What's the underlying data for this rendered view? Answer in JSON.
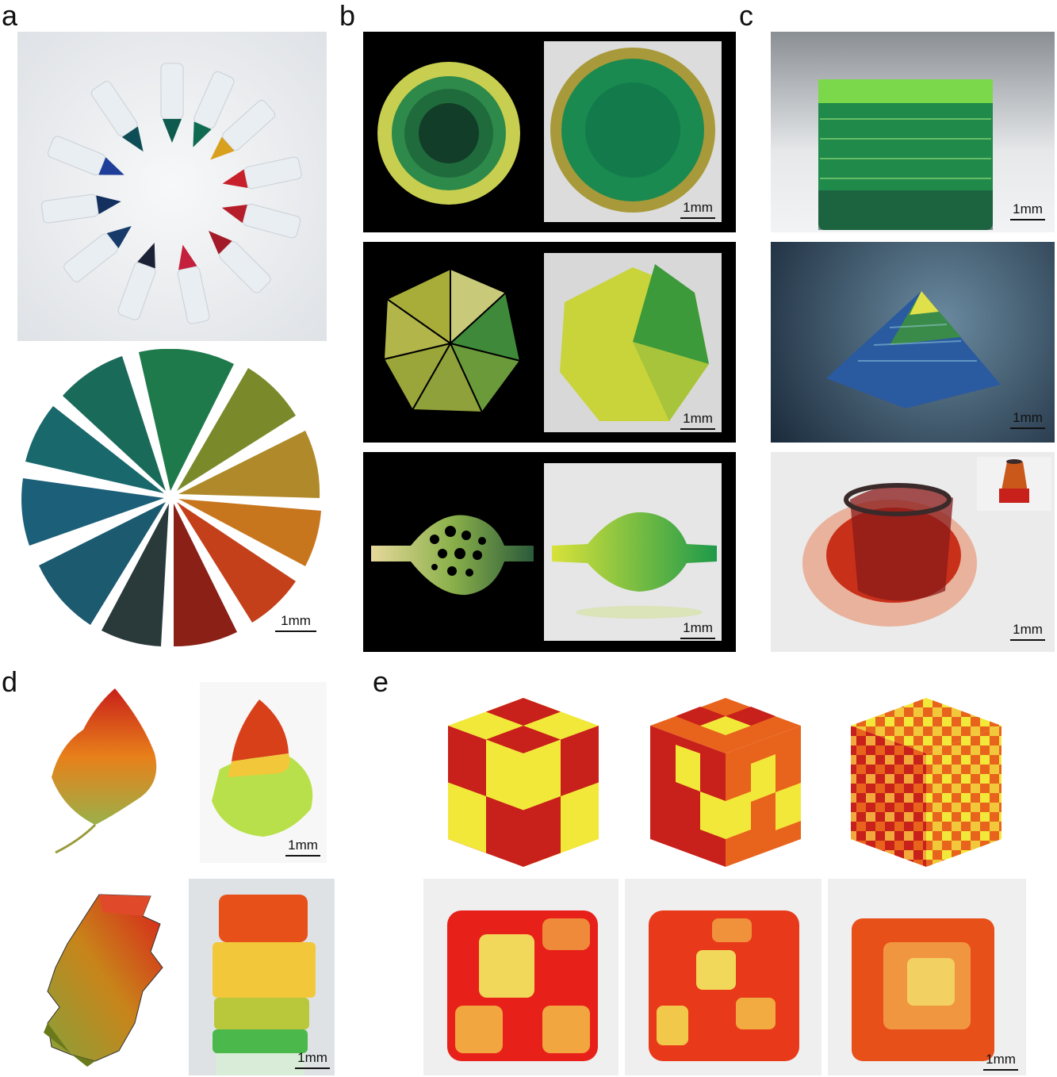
{
  "panels": {
    "a": {
      "label": "a",
      "scale": "1mm"
    },
    "b": {
      "label": "b",
      "scale_1": "1mm",
      "scale_2": "1mm",
      "scale_3": "1mm"
    },
    "c": {
      "label": "c",
      "scale_1": "1mm",
      "scale_2": "1mm",
      "scale_3": "1mm"
    },
    "d": {
      "label": "d",
      "scale_1": "1mm",
      "scale_2": "1mm"
    },
    "e": {
      "label": "e",
      "scale": "1mm"
    }
  },
  "colors": {
    "dark_green": "#0f3d2a",
    "mid_green": "#1e7a3a",
    "yellow_green": "#b7c43b",
    "red": "#c8202a",
    "orange": "#e8641c",
    "yellow": "#f2e83a"
  },
  "icons": [
    "tube-wheel-photo",
    "pie-slices-photo",
    "circle-design",
    "heptagon-design",
    "vessel-design",
    "stack-photo",
    "pyramid-photo",
    "vase-photo",
    "leaf-drawing",
    "leaf-photo",
    "cube-design",
    "cube-photo"
  ]
}
